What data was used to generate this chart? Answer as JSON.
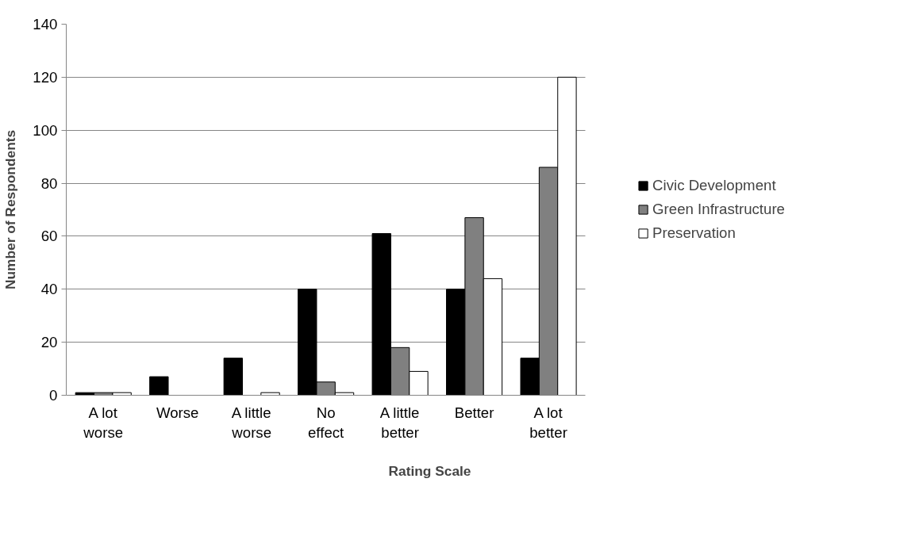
{
  "chart_data": {
    "type": "bar",
    "xlabel": "Rating Scale",
    "ylabel": "Number of Respondents",
    "categories": [
      "A lot worse",
      "Worse",
      "A little worse",
      "No effect",
      "A little better",
      "Better",
      "A lot better"
    ],
    "series": [
      {
        "name": "Civic Development",
        "color": "#000000",
        "values": [
          1,
          7,
          14,
          40,
          61,
          40,
          14
        ]
      },
      {
        "name": "Green Infrastructure",
        "color": "#808080",
        "values": [
          1,
          0,
          0,
          5,
          18,
          67,
          86
        ]
      },
      {
        "name": "Preservation",
        "color": "#ffffff",
        "values": [
          1,
          0,
          1,
          1,
          9,
          44,
          120
        ]
      }
    ],
    "ylim": [
      0,
      140
    ],
    "yticks": [
      0,
      20,
      40,
      60,
      80,
      100,
      120,
      140
    ],
    "grid": "y",
    "legend": "right"
  }
}
